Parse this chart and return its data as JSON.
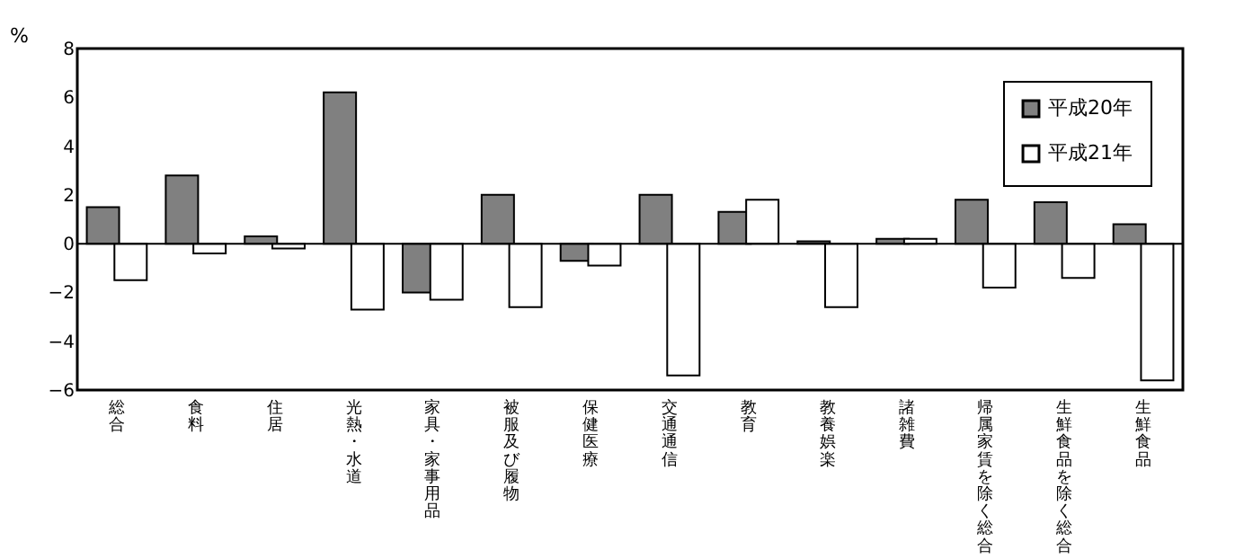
{
  "chart_data": {
    "type": "bar",
    "ylabel": "%",
    "categories": [
      "総合",
      "食料",
      "住居",
      "光熱・水道",
      "家具・家事用品",
      "被服及び履物",
      "保健医療",
      "交通通信",
      "教育",
      "教養娯楽",
      "諸雑費",
      "帰属家賃を除く総合",
      "生鮮食品を除く総合",
      "生鮮食品"
    ],
    "series": [
      {
        "name": "平成20年",
        "color": "#808080",
        "values": [
          1.5,
          2.8,
          0.3,
          6.2,
          -2.0,
          2.0,
          -0.7,
          2.0,
          1.3,
          0.1,
          0.2,
          1.8,
          1.7,
          0.8
        ]
      },
      {
        "name": "平成21年",
        "color": "#ffffff",
        "values": [
          -1.5,
          -0.4,
          -0.2,
          -2.7,
          -2.3,
          -2.6,
          -0.9,
          -5.4,
          1.8,
          -2.6,
          0.2,
          -1.8,
          -1.4,
          -5.6
        ]
      }
    ],
    "ylim": [
      -6,
      8
    ],
    "yticks": [
      -6,
      -4,
      -2,
      0,
      2,
      4,
      6,
      8
    ],
    "ref_lines": [
      {
        "axis": "y",
        "value": 0,
        "color": "#000000"
      }
    ],
    "grid": false,
    "legend": "top right"
  }
}
